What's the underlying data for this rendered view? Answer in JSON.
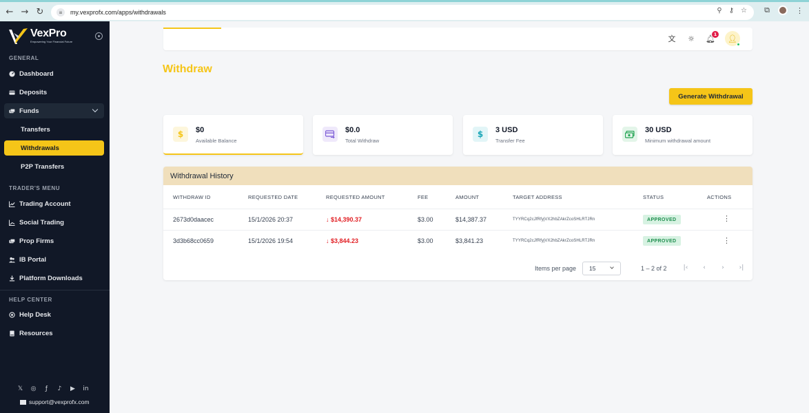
{
  "browser": {
    "url": "my.vexprofx.com/apps/withdrawals",
    "nav_back": "←",
    "nav_forward": "→",
    "nav_reload": "↻"
  },
  "brand": {
    "name": "VexPro",
    "tagline": "Empowering Your Financial Future",
    "accent_color": "#f5c518"
  },
  "sidebar": {
    "general_title": "GENERAL",
    "general_items": [
      {
        "label": "Dashboard",
        "icon": "dashboard-icon"
      },
      {
        "label": "Deposits",
        "icon": "deposit-icon"
      },
      {
        "label": "Funds",
        "icon": "funds-icon"
      }
    ],
    "funds_sub": [
      {
        "label": "Transfers"
      },
      {
        "label": "Withdrawals",
        "active": true
      },
      {
        "label": "P2P Transfers"
      }
    ],
    "trader_title": "TRADER'S MENU",
    "trader_items": [
      {
        "label": "Trading Account",
        "icon": "chart-icon"
      },
      {
        "label": "Social Trading",
        "icon": "social-icon"
      },
      {
        "label": "Prop Firms",
        "icon": "prop-icon"
      },
      {
        "label": "IB Portal",
        "icon": "users-icon"
      },
      {
        "label": "Platform Downloads",
        "icon": "download-icon"
      }
    ],
    "help_title": "HELP CENTER",
    "help_items": [
      {
        "label": "Help Desk",
        "icon": "help-icon"
      },
      {
        "label": "Resources",
        "icon": "book-icon"
      }
    ],
    "social_icons": [
      "x-icon",
      "instagram-icon",
      "facebook-icon",
      "tiktok-icon",
      "youtube-icon",
      "linkedin-icon"
    ],
    "support_email": "support@vexprofx.com"
  },
  "topbar": {
    "notification_count": "1"
  },
  "page": {
    "title": "Withdraw",
    "generate_button": "Generate Withdrawal"
  },
  "cards": [
    {
      "value": "$0",
      "label": "Available Balance",
      "icon": "dollar-icon",
      "color": "#f5c518",
      "bg": "#fdf6dc"
    },
    {
      "value": "$0.0",
      "label": "Total Withdraw",
      "icon": "card-transfer-icon",
      "color": "#7c5cd6",
      "bg": "#efe9fb"
    },
    {
      "value": "3 USD",
      "label": "Transfer Fee",
      "icon": "dollar-icon",
      "color": "#1aa6b7",
      "bg": "#e2f5f7"
    },
    {
      "value": "30 USD",
      "label": "Minimum withdrawal amount",
      "icon": "cash-icon",
      "color": "#22a352",
      "bg": "#e3f5e9"
    }
  ],
  "history": {
    "title": "Withdrawal History",
    "columns": [
      "WITHDRAW ID",
      "REQUESTED DATE",
      "REQUESTED AMOUNT",
      "FEE",
      "AMOUNT",
      "TARGET ADDRESS",
      "STATUS",
      "ACTIONS"
    ],
    "rows": [
      {
        "id": "2673d0daacec",
        "date": "15/1/2026 20:37",
        "requested": "↓ $14,390.37",
        "fee": "$3.00",
        "amount": "$14,387.37",
        "address": "TYYRCq2cJfRfyjVX2hbZAkrZcoSHLRTJRn",
        "status": "APPROVED"
      },
      {
        "id": "3d3b68cc0659",
        "date": "15/1/2026 19:54",
        "requested": "↓ $3,844.23",
        "fee": "$3.00",
        "amount": "$3,841.23",
        "address": "TYYRCq2cJfRfyjVX2hbZAkrZcoSHLRTJRn",
        "status": "APPROVED"
      }
    ],
    "items_per_page_label": "Items per page",
    "items_per_page": "15",
    "range": "1 – 2 of 2"
  }
}
